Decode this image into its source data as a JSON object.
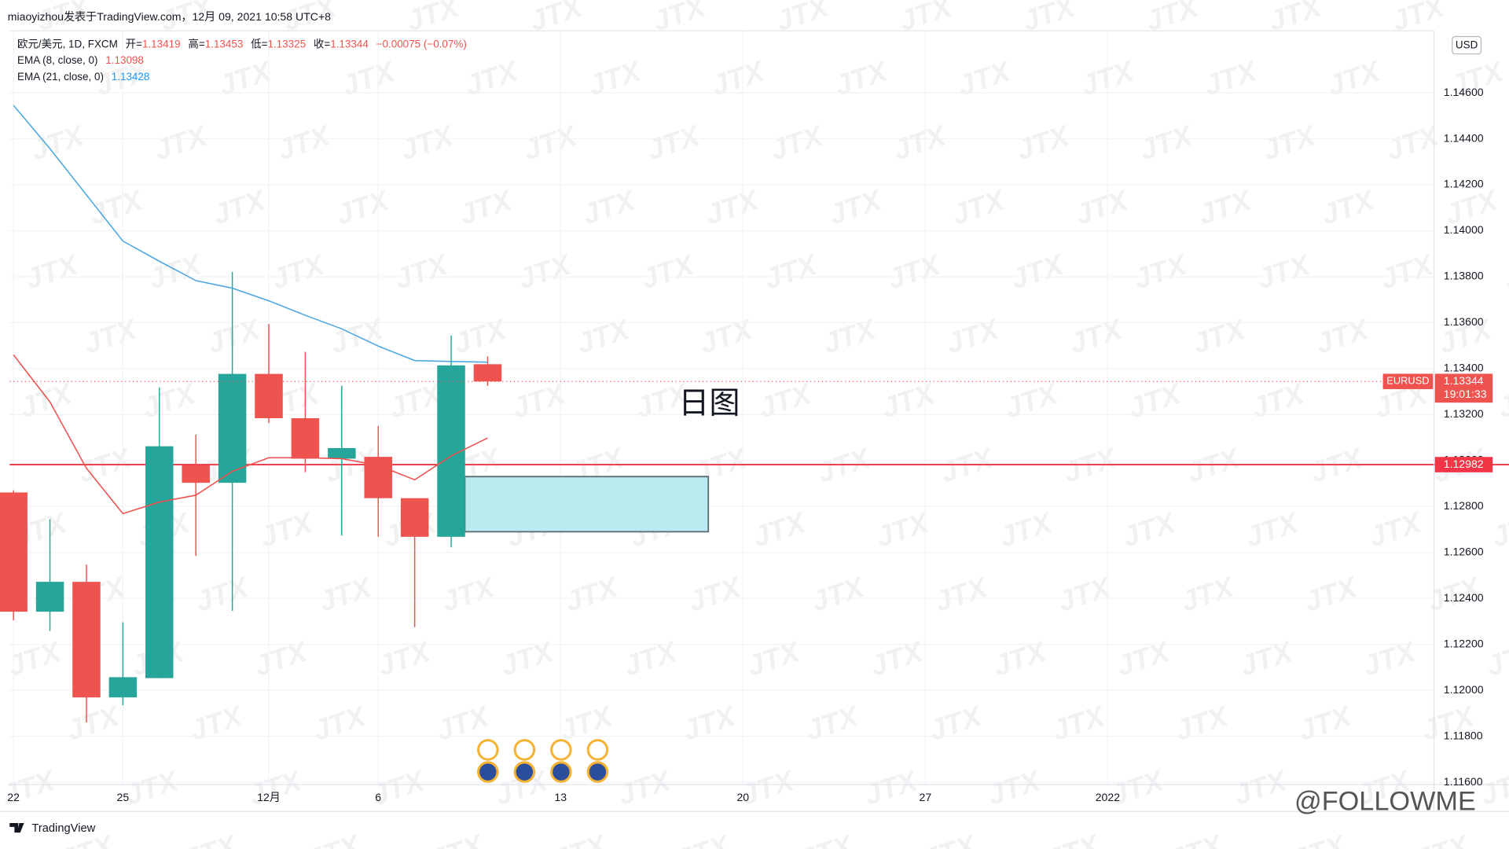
{
  "chart_data": {
    "type": "candlestick",
    "title": "miaoyizhou发表于TradingView.com，12月 09, 2021 10:58 UTC+8",
    "symbol": "欧元/美元, 1D, FXCM",
    "ohlc_labels": [
      "开=",
      "高=",
      "低=",
      "收="
    ],
    "change": "−0.00075 (−0.07%)",
    "categories": [
      "22",
      null,
      null,
      "25",
      null,
      null,
      null,
      "12月",
      null,
      null,
      "6",
      null,
      null,
      null,
      null,
      "13",
      null,
      null,
      null,
      null,
      "20",
      null,
      null,
      null,
      null,
      "27",
      null,
      null,
      null,
      null,
      "2022",
      null,
      null,
      null,
      null,
      null,
      null,
      null,
      null
    ],
    "open": [
      1.12861,
      1.12342,
      1.12472,
      1.11969,
      1.12053,
      1.12979,
      1.12903,
      1.13377,
      1.13184,
      1.13008,
      1.13016,
      1.12836,
      1.12668,
      1.13419,
      null,
      null,
      null,
      null,
      null,
      null,
      null,
      null,
      null,
      null,
      null,
      null,
      null,
      null,
      null,
      null,
      null,
      null,
      null,
      null,
      null,
      null,
      null,
      null,
      null
    ],
    "high": [
      1.1287,
      1.12744,
      1.12547,
      1.12296,
      1.13318,
      1.13113,
      1.13821,
      1.13594,
      1.13473,
      1.13326,
      1.1315,
      1.12836,
      1.13544,
      1.13453,
      null,
      null,
      null,
      null,
      null,
      null,
      null,
      null,
      null,
      null,
      null,
      null,
      null,
      null,
      null,
      null,
      null,
      null,
      null,
      null,
      null,
      null,
      null,
      null,
      null
    ],
    "low": [
      1.12304,
      1.12258,
      1.1186,
      1.11935,
      1.12053,
      1.12585,
      1.12346,
      1.13163,
      1.12949,
      1.12673,
      1.12668,
      1.12275,
      1.12622,
      1.13325,
      null,
      null,
      null,
      null,
      null,
      null,
      null,
      null,
      null,
      null,
      null,
      null,
      null,
      null,
      null,
      null,
      null,
      null,
      null,
      null,
      null,
      null,
      null,
      null,
      null
    ],
    "close": [
      1.12342,
      1.12472,
      1.11969,
      1.12057,
      1.13062,
      1.12903,
      1.13377,
      1.13184,
      1.13008,
      1.13054,
      1.12836,
      1.12668,
      1.13414,
      1.13344,
      null,
      null,
      null,
      null,
      null,
      null,
      null,
      null,
      null,
      null,
      null,
      null,
      null,
      null,
      null,
      null,
      null,
      null,
      null,
      null,
      null,
      null,
      null,
      null,
      null
    ],
    "up_color": "#26a69a",
    "down_color": "#ef5350",
    "series": [
      {
        "name": "EMA (8, close, 0)",
        "color": "#ef5350",
        "values": [
          1.1346,
          1.13255,
          1.12966,
          1.12769,
          1.12819,
          1.12849,
          1.12953,
          1.13012,
          1.13012,
          1.13008,
          1.12979,
          1.12916,
          1.1302,
          1.13098,
          null,
          null,
          null,
          null,
          null,
          null,
          null,
          null,
          null,
          null,
          null,
          null,
          null,
          null,
          null,
          null,
          null,
          null,
          null,
          null,
          null,
          null,
          null,
          null,
          null
        ]
      },
      {
        "name": "EMA (21, close, 0)",
        "color": "#4fa8e0",
        "values": [
          1.14546,
          1.14357,
          1.14156,
          1.13955,
          1.13867,
          1.13783,
          1.1375,
          1.13695,
          1.13632,
          1.13573,
          1.13498,
          1.13435,
          1.13431,
          1.13428,
          null,
          null,
          null,
          null,
          null,
          null,
          null,
          null,
          null,
          null,
          null,
          null,
          null,
          null,
          null,
          null,
          null,
          null,
          null,
          null,
          null,
          null,
          null,
          null,
          null
        ]
      }
    ],
    "ylim": [
      1.1159,
      1.1487
    ],
    "yticks": [
      {
        "value": 1.116,
        "label": "1.11600"
      },
      {
        "value": 1.118,
        "label": "1.11800"
      },
      {
        "value": 1.12,
        "label": "1.12000"
      },
      {
        "value": 1.122,
        "label": "1.12200"
      },
      {
        "value": 1.124,
        "label": "1.12400"
      },
      {
        "value": 1.126,
        "label": "1.12600"
      },
      {
        "value": 1.128,
        "label": "1.12800"
      },
      {
        "value": 1.13,
        "label": "1.13000"
      },
      {
        "value": 1.132,
        "label": "1.13200"
      },
      {
        "value": 1.134,
        "label": "1.13400"
      },
      {
        "value": 1.136,
        "label": "1.13600"
      },
      {
        "value": 1.138,
        "label": "1.13800"
      },
      {
        "value": 1.14,
        "label": "1.14000"
      },
      {
        "value": 1.142,
        "label": "1.14200"
      },
      {
        "value": 1.144,
        "label": "1.14400"
      },
      {
        "value": 1.146,
        "label": "1.14600"
      }
    ],
    "grid": true,
    "currency": "USD",
    "ticker": "EURUSD",
    "countdown": "19:01:33",
    "hline": {
      "value": 1.12982,
      "color": "#f23645"
    },
    "zone": {
      "top": 1.1293,
      "bottom": 1.1269,
      "color": "#b9ebf0"
    },
    "annotation": "日图",
    "watermark": "JTX",
    "brand": "TradingView",
    "source": "@FOLLOWME"
  }
}
